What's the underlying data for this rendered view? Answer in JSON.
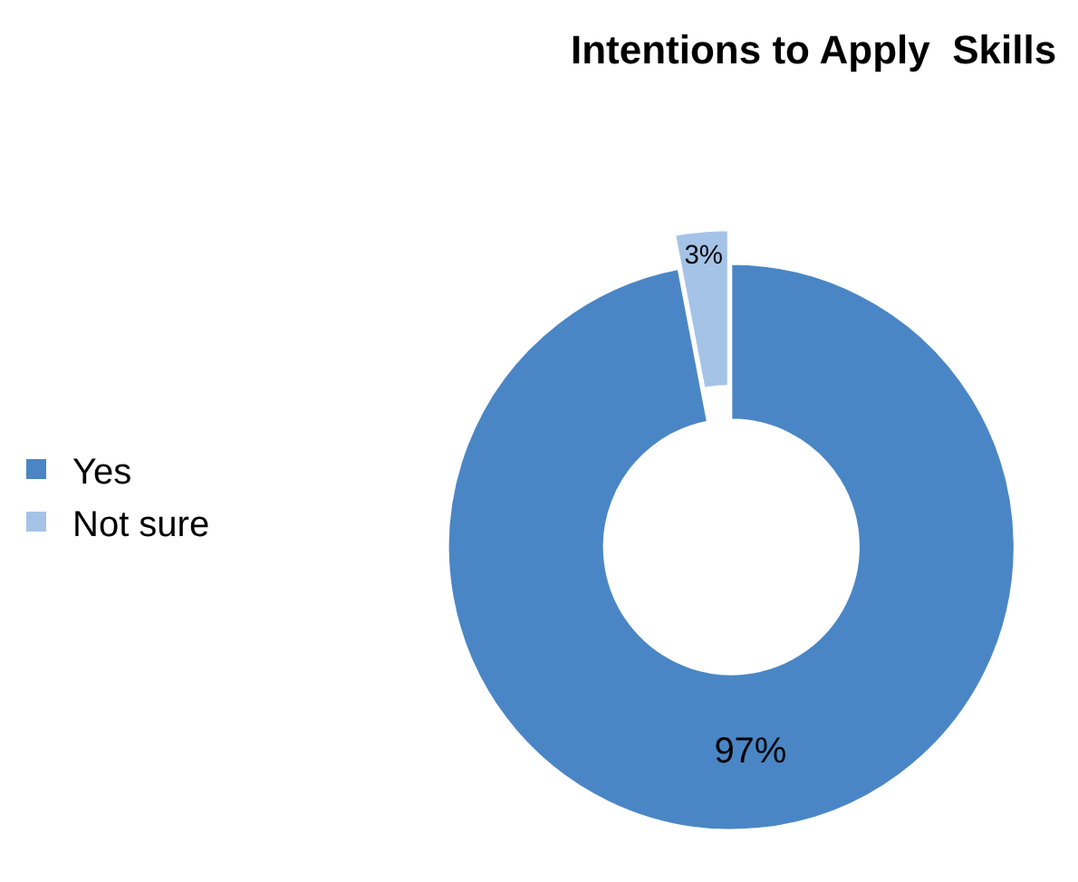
{
  "chart_data": {
    "type": "donut",
    "title": "Intentions to Apply  Skills",
    "categories": [
      "Yes",
      "Not sure"
    ],
    "values": [
      97,
      3
    ],
    "colors": [
      "#4a86c5",
      "#a5c3e6"
    ],
    "value_labels": [
      "97%",
      "3%"
    ],
    "legend": "left"
  }
}
